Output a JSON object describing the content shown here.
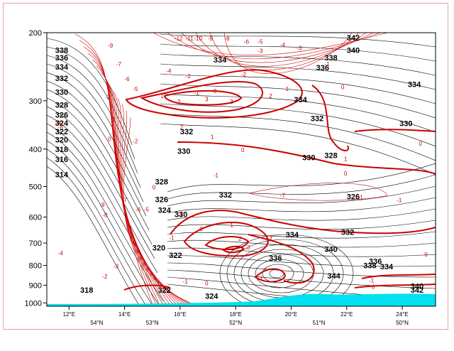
{
  "chart_data": {
    "type": "contour",
    "title": "",
    "x_axis": {
      "longitude_ticks": [
        {
          "lon": 12,
          "label": "12°E"
        },
        {
          "lon": 14,
          "label": "14°E"
        },
        {
          "lon": 16,
          "label": "16°E"
        },
        {
          "lon": 18,
          "label": "18°E"
        },
        {
          "lon": 20,
          "label": "20°E"
        },
        {
          "lon": 22,
          "label": "22°E"
        },
        {
          "lon": 24,
          "label": "24°E"
        }
      ],
      "latitude_ticks": [
        {
          "lon": 13,
          "label": "54°N"
        },
        {
          "lon": 15,
          "label": "53°N"
        },
        {
          "lon": 18,
          "label": "52°N"
        },
        {
          "lon": 21,
          "label": "51°N"
        },
        {
          "lon": 24,
          "label": "50°N"
        }
      ],
      "range": [
        11.2,
        25.2
      ]
    },
    "y_axis": {
      "label": "",
      "ticks": [
        200,
        300,
        400,
        500,
        600,
        700,
        800,
        900,
        1000
      ],
      "range": [
        200,
        1020
      ],
      "scale": "log-pressure, inverted"
    },
    "series": [
      {
        "field": "black contours (value labels)",
        "labels": [
          {
            "text": "342",
            "lon": 22.0,
            "p": 206
          },
          {
            "text": "340",
            "lon": 22.0,
            "p": 222
          },
          {
            "text": "338",
            "lon": 21.2,
            "p": 232
          },
          {
            "text": "338",
            "lon": 11.5,
            "p": 222
          },
          {
            "text": "336",
            "lon": 11.5,
            "p": 232
          },
          {
            "text": "334",
            "lon": 11.5,
            "p": 245
          },
          {
            "text": "332",
            "lon": 11.5,
            "p": 262
          },
          {
            "text": "330",
            "lon": 11.5,
            "p": 285
          },
          {
            "text": "328",
            "lon": 11.5,
            "p": 307
          },
          {
            "text": "326",
            "lon": 11.5,
            "p": 326
          },
          {
            "text": "324",
            "lon": 11.5,
            "p": 342
          },
          {
            "text": "322",
            "lon": 11.5,
            "p": 360
          },
          {
            "text": "320",
            "lon": 11.5,
            "p": 378
          },
          {
            "text": "318",
            "lon": 11.5,
            "p": 400
          },
          {
            "text": "316",
            "lon": 11.5,
            "p": 425
          },
          {
            "text": "314",
            "lon": 11.5,
            "p": 465
          },
          {
            "text": "334",
            "lon": 17.2,
            "p": 235
          },
          {
            "text": "336",
            "lon": 20.9,
            "p": 246
          },
          {
            "text": "334",
            "lon": 24.2,
            "p": 272
          },
          {
            "text": "334",
            "lon": 20.1,
            "p": 298
          },
          {
            "text": "332",
            "lon": 20.7,
            "p": 333
          },
          {
            "text": "330",
            "lon": 23.9,
            "p": 343
          },
          {
            "text": "332",
            "lon": 16.0,
            "p": 360
          },
          {
            "text": "330",
            "lon": 15.9,
            "p": 405
          },
          {
            "text": "330",
            "lon": 20.4,
            "p": 420
          },
          {
            "text": "328",
            "lon": 21.2,
            "p": 415
          },
          {
            "text": "328",
            "lon": 15.1,
            "p": 485
          },
          {
            "text": "326",
            "lon": 15.1,
            "p": 540
          },
          {
            "text": "324",
            "lon": 15.2,
            "p": 575
          },
          {
            "text": "326",
            "lon": 22.0,
            "p": 530
          },
          {
            "text": "332",
            "lon": 17.4,
            "p": 525
          },
          {
            "text": "330",
            "lon": 15.8,
            "p": 590
          },
          {
            "text": "334",
            "lon": 19.8,
            "p": 665
          },
          {
            "text": "332",
            "lon": 21.8,
            "p": 655
          },
          {
            "text": "340",
            "lon": 21.2,
            "p": 725
          },
          {
            "text": "336",
            "lon": 19.2,
            "p": 765
          },
          {
            "text": "336",
            "lon": 22.8,
            "p": 780
          },
          {
            "text": "338",
            "lon": 22.6,
            "p": 800
          },
          {
            "text": "334",
            "lon": 23.2,
            "p": 805
          },
          {
            "text": "344",
            "lon": 21.3,
            "p": 850
          },
          {
            "text": "320",
            "lon": 15.0,
            "p": 720
          },
          {
            "text": "322",
            "lon": 15.6,
            "p": 752
          },
          {
            "text": "318",
            "lon": 12.4,
            "p": 925
          },
          {
            "text": "322",
            "lon": 15.2,
            "p": 925
          },
          {
            "text": "324",
            "lon": 16.9,
            "p": 960
          },
          {
            "text": "340",
            "lon": 24.3,
            "p": 905
          },
          {
            "text": "342",
            "lon": 24.3,
            "p": 925
          }
        ]
      },
      {
        "field": "red contours (value labels)",
        "labels": [
          {
            "text": "-9",
            "lon": 13.4,
            "p": 215
          },
          {
            "text": "-7",
            "lon": 13.7,
            "p": 240
          },
          {
            "text": "-6",
            "lon": 14.0,
            "p": 262
          },
          {
            "text": "-5",
            "lon": 14.3,
            "p": 278
          },
          {
            "text": "-4",
            "lon": 15.5,
            "p": 250
          },
          {
            "text": "-2",
            "lon": 16.2,
            "p": 258
          },
          {
            "text": "-1",
            "lon": 16.5,
            "p": 285
          },
          {
            "text": "-1",
            "lon": 21.2,
            "p": 240
          },
          {
            "text": "-2",
            "lon": 18.2,
            "p": 255
          },
          {
            "text": "-3",
            "lon": 18.8,
            "p": 222
          },
          {
            "text": "-12",
            "lon": 15.8,
            "p": 206
          },
          {
            "text": "-11",
            "lon": 16.2,
            "p": 206
          },
          {
            "text": "-10",
            "lon": 16.5,
            "p": 206
          },
          {
            "text": "-9",
            "lon": 17.0,
            "p": 206
          },
          {
            "text": "-8",
            "lon": 17.6,
            "p": 206
          },
          {
            "text": "-6",
            "lon": 18.3,
            "p": 210
          },
          {
            "text": "-5",
            "lon": 18.8,
            "p": 210
          },
          {
            "text": "-4",
            "lon": 19.6,
            "p": 214
          },
          {
            "text": "-3",
            "lon": 20.2,
            "p": 218
          },
          {
            "text": "-2",
            "lon": 13.3,
            "p": 292
          },
          {
            "text": "-1",
            "lon": 13.5,
            "p": 333
          },
          {
            "text": "-9",
            "lon": 11.5,
            "p": 340
          },
          {
            "text": "-8",
            "lon": 11.6,
            "p": 350
          },
          {
            "text": "0",
            "lon": 13.4,
            "p": 375
          },
          {
            "text": "-2",
            "lon": 14.3,
            "p": 380
          },
          {
            "text": "-1",
            "lon": 17.2,
            "p": 465
          },
          {
            "text": "0",
            "lon": 15.0,
            "p": 500
          },
          {
            "text": "-9",
            "lon": 13.1,
            "p": 555
          },
          {
            "text": "-8",
            "lon": 13.2,
            "p": 590
          },
          {
            "text": "-7",
            "lon": 13.9,
            "p": 540
          },
          {
            "text": "-6",
            "lon": 14.4,
            "p": 570
          },
          {
            "text": "-5",
            "lon": 14.7,
            "p": 570
          },
          {
            "text": "-4",
            "lon": 15.9,
            "p": 590
          },
          {
            "text": "-7",
            "lon": 19.6,
            "p": 525
          },
          {
            "text": "-1",
            "lon": 23.8,
            "p": 540
          },
          {
            "text": "-1",
            "lon": 22.4,
            "p": 530
          },
          {
            "text": "-4",
            "lon": 11.6,
            "p": 740
          },
          {
            "text": "-3",
            "lon": 13.6,
            "p": 800
          },
          {
            "text": "-2",
            "lon": 13.2,
            "p": 850
          },
          {
            "text": "-1",
            "lon": 15.6,
            "p": 675
          },
          {
            "text": "0",
            "lon": 16.7,
            "p": 640
          },
          {
            "text": "1",
            "lon": 17.8,
            "p": 625
          },
          {
            "text": "2",
            "lon": 18.1,
            "p": 680
          },
          {
            "text": "3",
            "lon": 18.4,
            "p": 715
          },
          {
            "text": "3",
            "lon": 19.2,
            "p": 675
          },
          {
            "text": "-1",
            "lon": 16.1,
            "p": 875
          },
          {
            "text": "0",
            "lon": 16.9,
            "p": 885
          },
          {
            "text": "-1",
            "lon": 18.8,
            "p": 860
          },
          {
            "text": "-1",
            "lon": 22.8,
            "p": 870
          },
          {
            "text": "0",
            "lon": 22.9,
            "p": 905
          },
          {
            "text": "0",
            "lon": 24.8,
            "p": 745
          },
          {
            "text": "0",
            "lon": 17.2,
            "p": 282
          },
          {
            "text": "1",
            "lon": 15.3,
            "p": 290
          },
          {
            "text": "2",
            "lon": 15.9,
            "p": 300
          },
          {
            "text": "3",
            "lon": 16.9,
            "p": 296
          },
          {
            "text": "3",
            "lon": 17.8,
            "p": 300
          },
          {
            "text": "2",
            "lon": 19.2,
            "p": 290
          },
          {
            "text": "1",
            "lon": 19.8,
            "p": 278
          },
          {
            "text": "2",
            "lon": 16.0,
            "p": 350
          },
          {
            "text": "1",
            "lon": 17.1,
            "p": 370
          },
          {
            "text": "0",
            "lon": 18.2,
            "p": 400
          },
          {
            "text": "0",
            "lon": 21.8,
            "p": 275
          },
          {
            "text": "1",
            "lon": 21.9,
            "p": 422
          },
          {
            "text": "0",
            "lon": 21.9,
            "p": 460
          },
          {
            "text": "0",
            "lon": 24.6,
            "p": 385
          }
        ]
      }
    ],
    "colors": {
      "positive_contour": "#000000",
      "anomaly_contour": "#cc0000",
      "terrain_fill": "#00e0f0"
    },
    "grid": false
  }
}
